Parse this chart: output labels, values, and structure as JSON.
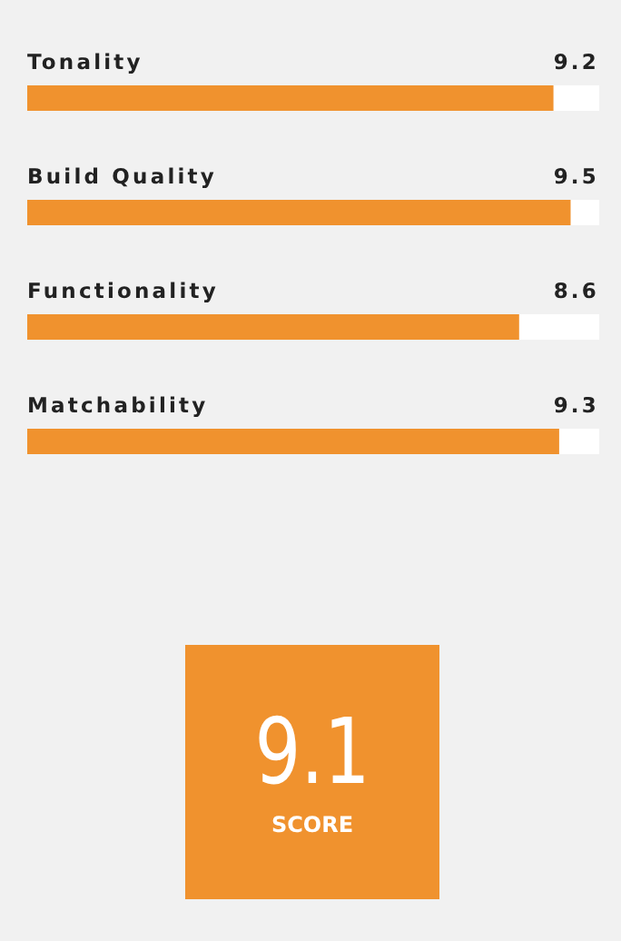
{
  "chart_data": {
    "type": "bar",
    "orientation": "horizontal",
    "categories": [
      "Tonality",
      "Build Quality",
      "Functionality",
      "Matchability"
    ],
    "values": [
      9.2,
      9.5,
      8.6,
      9.3
    ],
    "color": "#f0922e",
    "xlim": [
      0,
      10
    ],
    "data_labels": true,
    "annotations": [
      "9.1",
      "SCORE"
    ]
  }
}
